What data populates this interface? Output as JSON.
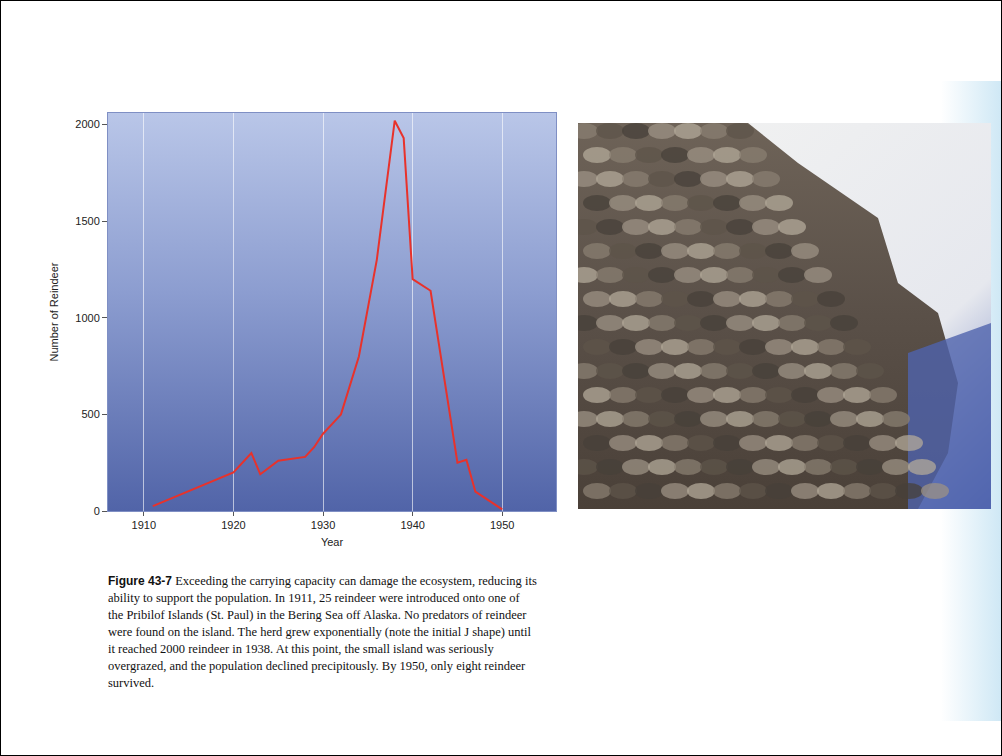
{
  "chart_data": {
    "type": "line",
    "x": [
      1911,
      1920,
      1922,
      1923,
      1925,
      1927,
      1928,
      1929,
      1930,
      1931,
      1932,
      1934,
      1936,
      1938,
      1939,
      1940,
      1942,
      1945,
      1946,
      1947,
      1950
    ],
    "values": [
      25,
      200,
      300,
      190,
      260,
      275,
      280,
      330,
      400,
      450,
      500,
      800,
      1300,
      2020,
      1930,
      1200,
      1140,
      250,
      265,
      100,
      8
    ],
    "color": "#e8322b",
    "xlabel": "Year",
    "ylabel": "Number of Reindeer",
    "xlim": [
      1906,
      1956
    ],
    "ylim": [
      0,
      2060
    ],
    "xticks": [
      1910,
      1920,
      1930,
      1940,
      1950
    ],
    "yticks": [
      0,
      500,
      1000,
      1500,
      2000
    ],
    "grid": true
  },
  "caption": {
    "label": "Figure 43-7",
    "lines": [
      "Exceeding the carrying capacity can damage the ecosystem, reducing its",
      "ability to support the population. In 1911, 25 reindeer were introduced onto one of",
      "the Pribilof Islands (St. Paul) in the Bering Sea off Alaska. No predators of reindeer",
      "were found on the island. The herd grew exponentially (note the initial J shape) until",
      "it reached 2000 reindeer in 1938. At this point, the small island was seriously",
      "overgrazed, and the population declined precipitously. By 1950, only eight reindeer",
      "survived."
    ]
  }
}
